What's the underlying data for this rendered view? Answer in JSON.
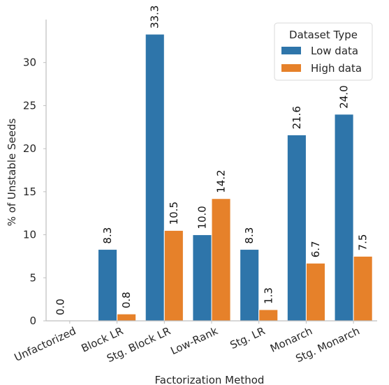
{
  "chart_data": {
    "type": "bar",
    "xlabel": "Factorization Method",
    "ylabel": "% of Unstable Seeds",
    "categories": [
      "Unfactorized",
      "Block LR",
      "Stg. Block LR",
      "Low-Rank",
      "Stg. LR",
      "Monarch",
      "Stg. Monarch"
    ],
    "ylim": [
      0,
      35
    ],
    "yticks": [
      0,
      5,
      10,
      15,
      20,
      25,
      30
    ],
    "grid": false,
    "legend": {
      "title": "Dataset Type",
      "placement": "top-right"
    },
    "series": [
      {
        "name": "Low data",
        "color": "#2e75aa",
        "values": [
          0.0,
          8.3,
          33.3,
          10.0,
          8.3,
          21.6,
          24.0
        ],
        "labels": [
          "0.0",
          "8.3",
          "33.3",
          "10.0",
          "8.3",
          "21.6",
          "24.0"
        ]
      },
      {
        "name": "High data",
        "color": "#e6812a",
        "values": [
          0.0,
          0.8,
          10.5,
          14.2,
          1.3,
          6.7,
          7.5
        ],
        "labels": [
          "",
          "0.8",
          "10.5",
          "14.2",
          "1.3",
          "6.7",
          "7.5"
        ]
      }
    ]
  }
}
